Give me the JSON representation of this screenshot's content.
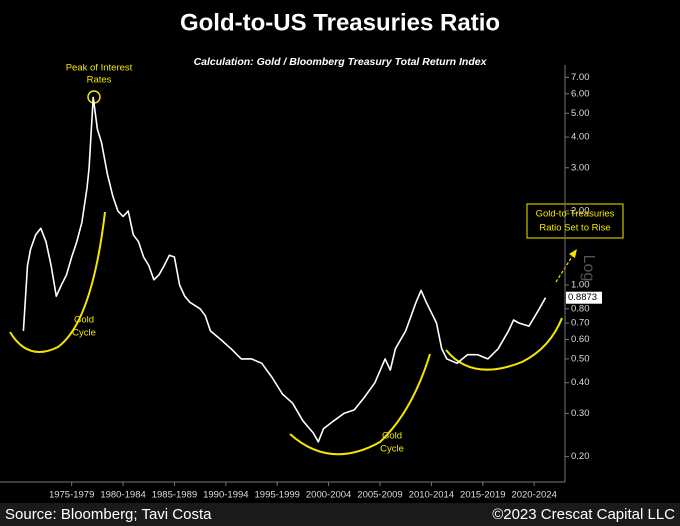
{
  "chart_data": {
    "type": "line",
    "title": "Gold-to-US Treasuries Ratio",
    "subtitle": "Calculation: Gold / Bloomberg Treasury Total Return Index",
    "y_label": "Log",
    "yscale": "log",
    "source": "Source: Bloomberg; Tavi Costa",
    "credit": "©2023 Crescat Capital LLC",
    "annotations": [
      [
        "Peak of Interest",
        "Rates"
      ],
      [
        "Gold",
        "Cycle"
      ],
      [
        "Gold",
        "Cycle"
      ],
      [
        "Gold-to-Treasuries",
        "Ratio Set to Rise"
      ]
    ],
    "x": [
      1972.8,
      1973.2,
      1973.5,
      1974,
      1974.5,
      1975,
      1975.5,
      1976,
      1976.5,
      1977,
      1977.5,
      1978,
      1978.5,
      1979,
      1979.2,
      1979.6,
      1980,
      1980.4,
      1981,
      1981.5,
      1982,
      1982.5,
      1983,
      1983.5,
      1984,
      1984.5,
      1985,
      1985.5,
      1986,
      1986.5,
      1987,
      1987.5,
      1988,
      1988.5,
      1989,
      1990,
      1990.5,
      1991,
      1992,
      1993,
      1994,
      1995,
      1996,
      1997,
      1998,
      1999,
      2000,
      2001,
      2001.5,
      2002,
      2003,
      2004,
      2005,
      2006,
      2007,
      2008,
      2008.5,
      2009,
      2010,
      2011,
      2011.5,
      2012,
      2013,
      2013.5,
      2014,
      2015,
      2016,
      2017,
      2018,
      2019,
      2020,
      2020.5,
      2021,
      2022,
      2023,
      2023.6
    ],
    "series": [
      {
        "name": "Gold / Treasuries",
        "color": "#ffffff",
        "values": [
          0.65,
          1.2,
          1.4,
          1.6,
          1.7,
          1.5,
          1.2,
          0.9,
          1.0,
          1.1,
          1.3,
          1.5,
          1.8,
          2.5,
          3.0,
          5.8,
          4.3,
          3.8,
          2.8,
          2.3,
          2.0,
          1.9,
          2.0,
          1.6,
          1.5,
          1.3,
          1.2,
          1.05,
          1.1,
          1.2,
          1.32,
          1.3,
          1.0,
          0.9,
          0.85,
          0.8,
          0.75,
          0.65,
          0.6,
          0.55,
          0.5,
          0.5,
          0.48,
          0.42,
          0.36,
          0.33,
          0.28,
          0.25,
          0.23,
          0.26,
          0.28,
          0.3,
          0.31,
          0.35,
          0.4,
          0.5,
          0.45,
          0.55,
          0.65,
          0.85,
          0.95,
          0.85,
          0.7,
          0.55,
          0.5,
          0.48,
          0.52,
          0.52,
          0.5,
          0.55,
          0.65,
          0.72,
          0.7,
          0.68,
          0.8,
          0.8873
        ],
        "value_labels": [
          null,
          null,
          null,
          null,
          null,
          null,
          null,
          null,
          null,
          null,
          null,
          null,
          null,
          null,
          null,
          null,
          null,
          null,
          null,
          null,
          null,
          null,
          null,
          null,
          null,
          null,
          null,
          null,
          null,
          null,
          null,
          null,
          null,
          null,
          null,
          null,
          null,
          null,
          null,
          null,
          null,
          null,
          null,
          null,
          null,
          null,
          null,
          null,
          null,
          null,
          null,
          null,
          null,
          null,
          null,
          null,
          null,
          null,
          null,
          null,
          null,
          null,
          null,
          null,
          null,
          null,
          null,
          null,
          null,
          null,
          null,
          null,
          null,
          null,
          null,
          "0.8873"
        ]
      }
    ],
    "xlim": [
      1971.5,
      2025.5
    ],
    "xticks": [
      {
        "value": 1977.5,
        "label": "1975-1979"
      },
      {
        "value": 1982.5,
        "label": "1980-1984"
      },
      {
        "value": 1987.5,
        "label": "1985-1989"
      },
      {
        "value": 1992.5,
        "label": "1990-1994"
      },
      {
        "value": 1997.5,
        "label": "1995-1999"
      },
      {
        "value": 2002.5,
        "label": "2000-2004"
      },
      {
        "value": 2007.5,
        "label": "2005-2009"
      },
      {
        "value": 2012.5,
        "label": "2010-2014"
      },
      {
        "value": 2017.5,
        "label": "2015-2019"
      },
      {
        "value": 2022.5,
        "label": "2020-2024"
      }
    ],
    "ylim": [
      0.17,
      7.5
    ],
    "yticks": [
      {
        "value": 0.2,
        "label": "0.20"
      },
      {
        "value": 0.3,
        "label": "0.30"
      },
      {
        "value": 0.4,
        "label": "0.40"
      },
      {
        "value": 0.5,
        "label": "0.50"
      },
      {
        "value": 0.6,
        "label": "0.60"
      },
      {
        "value": 0.7,
        "label": "0.70"
      },
      {
        "value": 0.8,
        "label": "0.80"
      },
      {
        "value": 1,
        "label": "1.00"
      },
      {
        "value": 2,
        "label": "2.00"
      },
      {
        "value": 3,
        "label": "3.00"
      },
      {
        "value": 4,
        "label": "4.00"
      },
      {
        "value": 5,
        "label": "5.00"
      },
      {
        "value": 6,
        "label": "6.00"
      },
      {
        "value": 7,
        "label": "7.00"
      }
    ],
    "annotation_color": "#f2e600"
  }
}
